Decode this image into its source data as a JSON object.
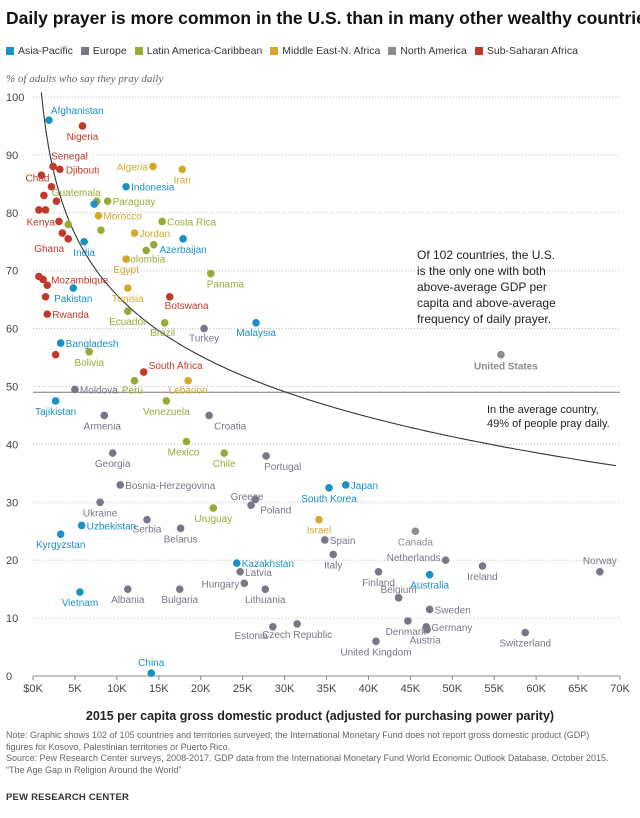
{
  "title": "Daily prayer is more common in the U.S. than in many other wealthy countries",
  "subtitle": "% of adults who say they pray daily",
  "legend": [
    {
      "label": "Asia-Pacific",
      "color": "#1a91c4"
    },
    {
      "label": "Europe",
      "color": "#7b7586"
    },
    {
      "label": "Latin America-Caribbean",
      "color": "#9aa83a"
    },
    {
      "label": "Middle East-N. Africa",
      "color": "#d6a72d"
    },
    {
      "label": "North America",
      "color": "#8c8c8c"
    },
    {
      "label": "Sub-Saharan Africa",
      "color": "#c0392b"
    }
  ],
  "annotations": {
    "us_callout": [
      "Of 102 countries, the U.S.",
      "is the only one with both",
      "above-average GDP per",
      "capita and above-average",
      "frequency of daily prayer."
    ],
    "average_callout": [
      "In the average country,",
      "49% of people pray daily."
    ]
  },
  "notes": [
    "Note: Graphic shows 102 of 105 countries and territories surveyed; the International Monetary Fund does not report gross domestic product (GDP)",
    "figures for Kosovo, Palestinian territories or Puerto Rico.",
    "Source: Pew Research Center surveys, 2008-2017. GDP data from the International Monetary Fund World Economic Outlook Database, October 2015.",
    "“The Age Gap in Religion Around the World”"
  ],
  "source_org": "PEW RESEARCH CENTER",
  "chart_data": {
    "type": "scatter",
    "xlabel": "2015 per capita gross domestic product (adjusted for purchasing power parity)",
    "ylabel": "% of adults who say they pray daily",
    "xlim": [
      0,
      70000
    ],
    "ylim": [
      0,
      100
    ],
    "x_ticks": [
      {
        "value": 0,
        "label": "$0K"
      },
      {
        "value": 5000,
        "label": "5K"
      },
      {
        "value": 10000,
        "label": "10K"
      },
      {
        "value": 15000,
        "label": "15K"
      },
      {
        "value": 20000,
        "label": "20K"
      },
      {
        "value": 25000,
        "label": "25K"
      },
      {
        "value": 30000,
        "label": "30K"
      },
      {
        "value": 35000,
        "label": "35K"
      },
      {
        "value": 40000,
        "label": "40K"
      },
      {
        "value": 45000,
        "label": "45K"
      },
      {
        "value": 50000,
        "label": "50K"
      },
      {
        "value": 55000,
        "label": "55K"
      },
      {
        "value": 60000,
        "label": "60K"
      },
      {
        "value": 65000,
        "label": "65K"
      },
      {
        "value": 70000,
        "label": "70K"
      }
    ],
    "y_ticks": [
      0,
      10,
      20,
      30,
      40,
      50,
      60,
      70,
      80,
      90,
      100
    ],
    "grid": "horizontal dotted",
    "reference_line": {
      "y": 49
    },
    "trend": "logarithmic",
    "points": [
      {
        "name": "Afghanistan",
        "x": 1900,
        "y": 96,
        "region": "Asia-Pacific",
        "labeled": true
      },
      {
        "name": "Nigeria",
        "x": 5900,
        "y": 95,
        "region": "Sub-Saharan Africa",
        "labeled": true
      },
      {
        "name": "Senegal",
        "x": 2400,
        "y": 88,
        "region": "Sub-Saharan Africa",
        "labeled": true
      },
      {
        "name": "Djibouti",
        "x": 3200,
        "y": 87.5,
        "region": "Sub-Saharan Africa",
        "labeled": true
      },
      {
        "name": "Chad",
        "x": 2200,
        "y": 84.5,
        "region": "Sub-Saharan Africa",
        "labeled": true
      },
      {
        "name": "Guatemala",
        "x": 7600,
        "y": 82,
        "region": "Latin America-Caribbean",
        "labeled": true
      },
      {
        "name": "Paraguay",
        "x": 8900,
        "y": 82,
        "region": "Latin America-Caribbean",
        "labeled": true
      },
      {
        "name": "Indonesia",
        "x": 11100,
        "y": 84.5,
        "region": "Asia-Pacific",
        "labeled": true
      },
      {
        "name": "Algeria",
        "x": 14300,
        "y": 88,
        "region": "Middle East-N. Africa",
        "labeled": true
      },
      {
        "name": "Iran",
        "x": 17800,
        "y": 87.5,
        "region": "Middle East-N. Africa",
        "labeled": true
      },
      {
        "name": "Morocco",
        "x": 7800,
        "y": 79.5,
        "region": "Middle East-N. Africa",
        "labeled": true
      },
      {
        "name": "Costa Rica",
        "x": 15400,
        "y": 78.5,
        "region": "Latin America-Caribbean",
        "labeled": true
      },
      {
        "name": "Kenya",
        "x": 3100,
        "y": 78.5,
        "region": "Sub-Saharan Africa",
        "labeled": true
      },
      {
        "name": "Jordan",
        "x": 12100,
        "y": 76.5,
        "region": "Middle East-N. Africa",
        "labeled": true
      },
      {
        "name": "Ghana",
        "x": 4200,
        "y": 75.5,
        "region": "Sub-Saharan Africa",
        "labeled": true
      },
      {
        "name": "India",
        "x": 6100,
        "y": 75,
        "region": "Asia-Pacific",
        "labeled": true
      },
      {
        "name": "Colombia",
        "x": 13500,
        "y": 73.5,
        "region": "Latin America-Caribbean",
        "labeled": true
      },
      {
        "name": "Azerbaijan",
        "x": 17900,
        "y": 75.5,
        "region": "Asia-Pacific",
        "labeled": true
      },
      {
        "name": "Egypt",
        "x": 11100,
        "y": 72,
        "region": "Middle East-N. Africa",
        "labeled": true
      },
      {
        "name": "Mozambique",
        "x": 1200,
        "y": 68.5,
        "region": "Sub-Saharan Africa",
        "labeled": true
      },
      {
        "name": "Panama",
        "x": 21200,
        "y": 69.5,
        "region": "Latin America-Caribbean",
        "labeled": true
      },
      {
        "name": "Pakistan",
        "x": 4800,
        "y": 67,
        "region": "Asia-Pacific",
        "labeled": true
      },
      {
        "name": "Tunisia",
        "x": 11300,
        "y": 67,
        "region": "Middle East-N. Africa",
        "labeled": true
      },
      {
        "name": "Botswana",
        "x": 16300,
        "y": 65.5,
        "region": "Sub-Saharan Africa",
        "labeled": true
      },
      {
        "name": "Rwanda",
        "x": 1700,
        "y": 62.5,
        "region": "Sub-Saharan Africa",
        "labeled": true
      },
      {
        "name": "Ecuador",
        "x": 11300,
        "y": 63,
        "region": "Latin America-Caribbean",
        "labeled": true
      },
      {
        "name": "Brazil",
        "x": 15700,
        "y": 61,
        "region": "Latin America-Caribbean",
        "labeled": true
      },
      {
        "name": "Turkey",
        "x": 20400,
        "y": 60,
        "region": "Europe",
        "labeled": true
      },
      {
        "name": "Malaysia",
        "x": 26600,
        "y": 61,
        "region": "Asia-Pacific",
        "labeled": true
      },
      {
        "name": "Bangladesh",
        "x": 3300,
        "y": 57.5,
        "region": "Asia-Pacific",
        "labeled": true
      },
      {
        "name": "Bolivia",
        "x": 6700,
        "y": 56,
        "region": "Latin America-Caribbean",
        "labeled": true
      },
      {
        "name": "United States",
        "x": 55800,
        "y": 55.5,
        "region": "North America",
        "labeled": true
      },
      {
        "name": "South Africa",
        "x": 13200,
        "y": 52.5,
        "region": "Sub-Saharan Africa",
        "labeled": true
      },
      {
        "name": "Peru",
        "x": 12100,
        "y": 51,
        "region": "Latin America-Caribbean",
        "labeled": true
      },
      {
        "name": "Lebanon",
        "x": 18500,
        "y": 51,
        "region": "Middle East-N. Africa",
        "labeled": true
      },
      {
        "name": "Moldova",
        "x": 5000,
        "y": 49.5,
        "region": "Europe",
        "labeled": true
      },
      {
        "name": "Tajikistan",
        "x": 2700,
        "y": 47.5,
        "region": "Asia-Pacific",
        "labeled": true
      },
      {
        "name": "Venezuela",
        "x": 15900,
        "y": 47.5,
        "region": "Latin America-Caribbean",
        "labeled": true
      },
      {
        "name": "Armenia",
        "x": 8500,
        "y": 45,
        "region": "Europe",
        "labeled": true
      },
      {
        "name": "Croatia",
        "x": 21000,
        "y": 45,
        "region": "Europe",
        "labeled": true
      },
      {
        "name": "Mexico",
        "x": 18300,
        "y": 40.5,
        "region": "Latin America-Caribbean",
        "labeled": true
      },
      {
        "name": "Georgia",
        "x": 9500,
        "y": 38.5,
        "region": "Europe",
        "labeled": true
      },
      {
        "name": "Chile",
        "x": 22800,
        "y": 38.5,
        "region": "Latin America-Caribbean",
        "labeled": true
      },
      {
        "name": "Portugal",
        "x": 27800,
        "y": 38,
        "region": "Europe",
        "labeled": true
      },
      {
        "name": "Bosnia-Herzegovina",
        "x": 10400,
        "y": 33,
        "region": "Europe",
        "labeled": true
      },
      {
        "name": "Japan",
        "x": 37300,
        "y": 33,
        "region": "Asia-Pacific",
        "labeled": true
      },
      {
        "name": "South Korea",
        "x": 35300,
        "y": 32.5,
        "region": "Asia-Pacific",
        "labeled": true
      },
      {
        "name": "Greece",
        "x": 26000,
        "y": 29.5,
        "region": "Europe",
        "labeled": true
      },
      {
        "name": "Poland",
        "x": 26500,
        "y": 30.5,
        "region": "Europe",
        "labeled": true
      },
      {
        "name": "Ukraine",
        "x": 8000,
        "y": 30,
        "region": "Europe",
        "labeled": true
      },
      {
        "name": "Uruguay",
        "x": 21500,
        "y": 29,
        "region": "Latin America-Caribbean",
        "labeled": true
      },
      {
        "name": "Israel",
        "x": 34100,
        "y": 27,
        "region": "Middle East-N. Africa",
        "labeled": true
      },
      {
        "name": "Serbia",
        "x": 13600,
        "y": 27,
        "region": "Europe",
        "labeled": true
      },
      {
        "name": "Uzbekistan",
        "x": 5800,
        "y": 26,
        "region": "Asia-Pacific",
        "labeled": true
      },
      {
        "name": "Belarus",
        "x": 17600,
        "y": 25.5,
        "region": "Europe",
        "labeled": true
      },
      {
        "name": "Canada",
        "x": 45600,
        "y": 25,
        "region": "North America",
        "labeled": true
      },
      {
        "name": "Kyrgyzstan",
        "x": 3300,
        "y": 24.5,
        "region": "Asia-Pacific",
        "labeled": true
      },
      {
        "name": "Spain",
        "x": 34800,
        "y": 23.5,
        "region": "Europe",
        "labeled": true
      },
      {
        "name": "Italy",
        "x": 35800,
        "y": 21,
        "region": "Europe",
        "labeled": true
      },
      {
        "name": "Netherlands",
        "x": 49200,
        "y": 20,
        "region": "Europe",
        "labeled": true
      },
      {
        "name": "Kazakhstan",
        "x": 24300,
        "y": 19.5,
        "region": "Asia-Pacific",
        "labeled": true
      },
      {
        "name": "Norway",
        "x": 67600,
        "y": 18,
        "region": "Europe",
        "labeled": true
      },
      {
        "name": "Ireland",
        "x": 53600,
        "y": 19,
        "region": "Europe",
        "labeled": true
      },
      {
        "name": "Latvia",
        "x": 24700,
        "y": 18,
        "region": "Europe",
        "labeled": true
      },
      {
        "name": "Hungary",
        "x": 25200,
        "y": 16,
        "region": "Europe",
        "labeled": true
      },
      {
        "name": "Finland",
        "x": 41200,
        "y": 18,
        "region": "Europe",
        "labeled": true
      },
      {
        "name": "Australia",
        "x": 47300,
        "y": 17.5,
        "region": "Asia-Pacific",
        "labeled": true
      },
      {
        "name": "Vietnam",
        "x": 5600,
        "y": 14.5,
        "region": "Asia-Pacific",
        "labeled": true
      },
      {
        "name": "Albania",
        "x": 11300,
        "y": 15,
        "region": "Europe",
        "labeled": true
      },
      {
        "name": "Bulgaria",
        "x": 17500,
        "y": 15,
        "region": "Europe",
        "labeled": true
      },
      {
        "name": "Lithuania",
        "x": 27700,
        "y": 15,
        "region": "Europe",
        "labeled": true
      },
      {
        "name": "Belgium",
        "x": 43600,
        "y": 13.5,
        "region": "Europe",
        "labeled": true
      },
      {
        "name": "Sweden",
        "x": 47300,
        "y": 11.5,
        "region": "Europe",
        "labeled": true
      },
      {
        "name": "Denmark",
        "x": 44700,
        "y": 9.5,
        "region": "Europe",
        "labeled": true
      },
      {
        "name": "Germany",
        "x": 46900,
        "y": 8.5,
        "region": "Europe",
        "labeled": true
      },
      {
        "name": "Austria",
        "x": 47000,
        "y": 8,
        "region": "Europe",
        "labeled": true
      },
      {
        "name": "Estonia",
        "x": 28600,
        "y": 8.5,
        "region": "Europe",
        "labeled": true
      },
      {
        "name": "Czech Republic",
        "x": 31500,
        "y": 9,
        "region": "Europe",
        "labeled": true
      },
      {
        "name": "Switzerland",
        "x": 58700,
        "y": 7.5,
        "region": "Europe",
        "labeled": true
      },
      {
        "name": "United Kingdom",
        "x": 40900,
        "y": 6,
        "region": "Europe",
        "labeled": true
      },
      {
        "name": "China",
        "x": 14100,
        "y": 0.5,
        "region": "Asia-Pacific",
        "labeled": true
      },
      {
        "name": "",
        "x": 1000,
        "y": 86.5,
        "region": "Sub-Saharan Africa",
        "labeled": false
      },
      {
        "name": "",
        "x": 700,
        "y": 80.5,
        "region": "Sub-Saharan Africa",
        "labeled": false
      },
      {
        "name": "",
        "x": 1500,
        "y": 80.5,
        "region": "Sub-Saharan Africa",
        "labeled": false
      },
      {
        "name": "",
        "x": 1300,
        "y": 83,
        "region": "Sub-Saharan Africa",
        "labeled": false
      },
      {
        "name": "",
        "x": 2800,
        "y": 82,
        "region": "Sub-Saharan Africa",
        "labeled": false
      },
      {
        "name": "",
        "x": 3500,
        "y": 76.5,
        "region": "Sub-Saharan Africa",
        "labeled": false
      },
      {
        "name": "",
        "x": 4200,
        "y": 78,
        "region": "Latin America-Caribbean",
        "labeled": false
      },
      {
        "name": "",
        "x": 7300,
        "y": 81.5,
        "region": "Asia-Pacific",
        "labeled": false
      },
      {
        "name": "",
        "x": 8100,
        "y": 77,
        "region": "Latin America-Caribbean",
        "labeled": false
      },
      {
        "name": "",
        "x": 14400,
        "y": 74.5,
        "region": "Latin America-Caribbean",
        "labeled": false
      },
      {
        "name": "",
        "x": 1700,
        "y": 67.5,
        "region": "Sub-Saharan Africa",
        "labeled": false
      },
      {
        "name": "",
        "x": 1500,
        "y": 65.5,
        "region": "Sub-Saharan Africa",
        "labeled": false
      },
      {
        "name": "",
        "x": 700,
        "y": 69,
        "region": "Sub-Saharan Africa",
        "labeled": false
      },
      {
        "name": "",
        "x": 2700,
        "y": 55.5,
        "region": "Sub-Saharan Africa",
        "labeled": false
      }
    ]
  }
}
